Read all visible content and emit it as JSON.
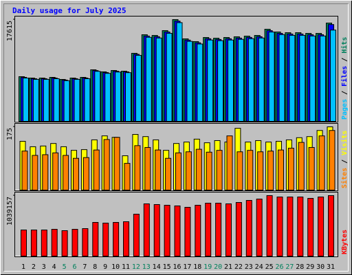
{
  "title": "Daily usage for July 2025",
  "legend_separator": " / ",
  "chart_data": [
    {
      "type": "bar",
      "ylim": [
        0,
        17615
      ],
      "yticks": [
        17615
      ],
      "series": [
        {
          "name": "Pages",
          "color": "#00c0ff",
          "values": [
            7500,
            7270,
            7270,
            7380,
            7040,
            7270,
            7380,
            8660,
            8310,
            8540,
            8430,
            11430,
            14550,
            14430,
            15240,
            17090,
            13850,
            13390,
            14080,
            13970,
            14080,
            14200,
            14310,
            14430,
            15470,
            15010,
            14890,
            14890,
            14780,
            14780,
            15800
          ]
        },
        {
          "name": "Files",
          "color": "#0000ff",
          "values": [
            7620,
            7385,
            7385,
            7500,
            7150,
            7385,
            7500,
            8790,
            8440,
            8675,
            8560,
            11605,
            14770,
            14650,
            15470,
            17350,
            14065,
            13595,
            14300,
            14180,
            14300,
            14415,
            14535,
            14650,
            15705,
            15235,
            15120,
            15120,
            15000,
            15000,
            16760
          ]
        },
        {
          "name": "Hits",
          "color": "#00805c",
          "values": [
            7735,
            7497,
            7497,
            7616,
            7259,
            7497,
            7616,
            8925,
            8568,
            8806,
            8687,
            11781,
            14994,
            14875,
            15708,
            17615,
            14280,
            13804,
            14518,
            14399,
            14518,
            14637,
            14756,
            14875,
            15946,
            15470,
            15351,
            15351,
            15232,
            15232,
            17017
          ]
        }
      ]
    },
    {
      "type": "bar",
      "ylim": [
        0,
        175
      ],
      "yticks": [
        175
      ],
      "series": [
        {
          "name": "Sites",
          "color": "#ff8000",
          "values": [
            108,
            96,
            98,
            103,
            96,
            88,
            90,
            111,
            140,
            146,
            74,
            123,
            118,
            111,
            88,
            103,
            106,
            113,
            105,
            110,
            150,
            106,
            110,
            106,
            108,
            111,
            116,
            132,
            118,
            150,
            165
          ]
        },
        {
          "name": "Visits",
          "color": "#ffff00",
          "values": [
            135,
            120,
            122,
            129,
            120,
            110,
            112,
            139,
            150,
            146,
            95,
            154,
            148,
            139,
            110,
            129,
            133,
            141,
            131,
            137,
            133,
            171,
            133,
            137,
            133,
            135,
            139,
            145,
            148,
            165,
            175
          ]
        }
      ]
    },
    {
      "type": "bar",
      "ylim": [
        0,
        1039157
      ],
      "yticks": [
        1039157
      ],
      "categories": [
        "1",
        "2",
        "3",
        "4",
        "5",
        "6",
        "7",
        "8",
        "9",
        "10",
        "11",
        "12",
        "13",
        "14",
        "15",
        "16",
        "17",
        "18",
        "19",
        "20",
        "21",
        "22",
        "23",
        "24",
        "25",
        "26",
        "27",
        "28",
        "29",
        "30",
        "31"
      ],
      "category_colors": [
        "#000000",
        "#000000",
        "#000000",
        "#000000",
        "#00805c",
        "#00805c",
        "#000000",
        "#000000",
        "#000000",
        "#000000",
        "#000000",
        "#00805c",
        "#00805c",
        "#000000",
        "#000000",
        "#000000",
        "#000000",
        "#000000",
        "#00805c",
        "#00805c",
        "#000000",
        "#000000",
        "#000000",
        "#000000",
        "#000000",
        "#00805c",
        "#00805c",
        "#000000",
        "#000000",
        "#000000",
        "#000000"
      ],
      "series": [
        {
          "name": "KBytes",
          "color": "#ff0000",
          "values": [
            448727,
            448727,
            448727,
            460536,
            436918,
            460536,
            472344,
            578621,
            566813,
            578621,
            590430,
            720325,
            897454,
            885645,
            873836,
            862028,
            838411,
            873836,
            909263,
            909263,
            897454,
            921071,
            956497,
            980114,
            1039157,
            1015540,
            1015540,
            1015540,
            991922,
            1015540,
            1039157
          ]
        }
      ]
    }
  ]
}
